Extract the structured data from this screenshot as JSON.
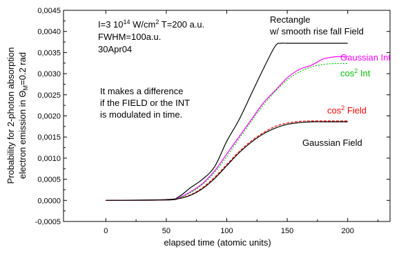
{
  "chart_data": {
    "type": "line",
    "title": "",
    "xlabel": "elapsed time   (atomic units)",
    "ylabel_line1": "Probability for 2-photon absorption",
    "ylabel_line2_pre": "electron emission in Θ",
    "ylabel_line2_sub": "M",
    "ylabel_line2_post": "=0.2 rad",
    "xlim": [
      -35,
      235
    ],
    "ylim": [
      -0.0005,
      0.0045
    ],
    "xticks": [
      0,
      50,
      100,
      150,
      200
    ],
    "xtick_labels": [
      "0",
      "50",
      "100",
      "150",
      "200"
    ],
    "yticks": [
      -0.0005,
      0,
      0.0005,
      0.001,
      0.0015,
      0.002,
      0.0025,
      0.003,
      0.0035,
      0.004,
      0.0045
    ],
    "ytick_labels": [
      "-0,0005",
      "0,0000",
      "0,0005",
      "0,0010",
      "0,0015",
      "0,0020",
      "0,0025",
      "0,0030",
      "0,0035",
      "0,0040",
      "0,0045"
    ],
    "grid": false,
    "parameters": {
      "line1_pre": "I=3 10",
      "line1_sup": "14",
      "line1_post": " W/cm",
      "line1_sup2": "2",
      "line1_tail": "   T=200 a.u.",
      "line2": "FWHM=100a.u.",
      "line3": "30Apr04"
    },
    "annotation": [
      "It makes a difference",
      "if the FIELD or the INT",
      "is modulated in time."
    ],
    "series": [
      {
        "label_lines": [
          "Rectangle",
          "w/ smooth rise fall Field"
        ],
        "color": "#000000",
        "dash": "",
        "x": [
          0,
          50,
          60,
          70,
          80,
          90,
          100,
          110,
          120,
          130,
          140,
          145,
          150,
          170,
          200
        ],
        "y": [
          0,
          2e-05,
          8e-05,
          0.0003,
          0.0005,
          0.0008,
          0.0014,
          0.0019,
          0.0025,
          0.0031,
          0.00365,
          0.00372,
          0.00372,
          0.00372,
          0.00372
        ]
      },
      {
        "label_main": "Gaussian Int",
        "color": "#ff00ff",
        "dash": "",
        "x": [
          0,
          50,
          60,
          70,
          80,
          90,
          100,
          110,
          120,
          130,
          140,
          150,
          160,
          170,
          180,
          190,
          200
        ],
        "y": [
          0,
          1e-05,
          6e-05,
          0.0002,
          0.0004,
          0.0007,
          0.0011,
          0.0015,
          0.0019,
          0.0023,
          0.0026,
          0.0029,
          0.0031,
          0.0032,
          0.00335,
          0.0034,
          0.0034
        ]
      },
      {
        "label_pre": "cos",
        "label_sup": "2",
        "label_post": " Int",
        "color": "#00c000",
        "dash": "2,2",
        "x": [
          0,
          50,
          60,
          70,
          80,
          90,
          100,
          110,
          120,
          130,
          140,
          150,
          160,
          170,
          180,
          190,
          200
        ],
        "y": [
          0,
          1e-05,
          5e-05,
          0.00018,
          0.00038,
          0.00066,
          0.00104,
          0.00145,
          0.00186,
          0.00225,
          0.00258,
          0.00285,
          0.00304,
          0.00316,
          0.00322,
          0.00324,
          0.00324
        ]
      },
      {
        "label_pre": "cos",
        "label_sup": "2",
        "label_post": " Field",
        "color": "#ff0000",
        "dash": "4,2",
        "x": [
          0,
          50,
          60,
          70,
          80,
          90,
          100,
          110,
          120,
          130,
          140,
          150,
          160,
          170,
          180,
          190,
          200
        ],
        "y": [
          0,
          1e-05,
          4e-05,
          0.00013,
          0.0003,
          0.00055,
          0.00085,
          0.00115,
          0.0014,
          0.0016,
          0.00175,
          0.00183,
          0.00187,
          0.00188,
          0.00188,
          0.00188,
          0.00188
        ]
      },
      {
        "label_main": "Gaussian Field",
        "color": "#000000",
        "dash": "",
        "x": [
          0,
          50,
          60,
          70,
          80,
          90,
          100,
          110,
          120,
          130,
          140,
          150,
          160,
          170,
          180,
          190,
          200
        ],
        "y": [
          0,
          1e-05,
          4e-05,
          0.00012,
          0.00028,
          0.00052,
          0.00082,
          0.00112,
          0.00137,
          0.00157,
          0.00171,
          0.0018,
          0.00184,
          0.00186,
          0.00186,
          0.00186,
          0.00186
        ]
      }
    ]
  }
}
